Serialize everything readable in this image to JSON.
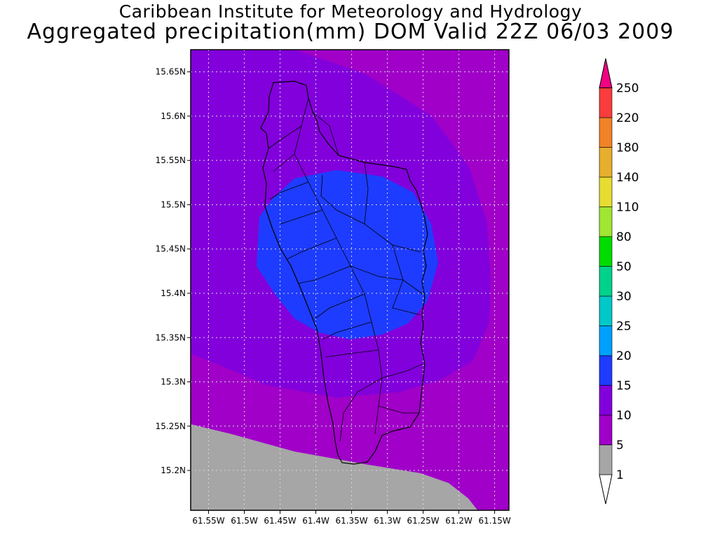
{
  "title_line1": "Caribbean Institute for Meteorology and Hydrology",
  "title_line2": "Aggregated precipitation(mm) DOM Valid 22Z 06/03 2009",
  "map": {
    "lon_range": [
      -61.575,
      -61.13
    ],
    "lat_range": [
      15.155,
      15.675
    ],
    "lon_ticks": [
      "61.55W",
      "61.5W",
      "61.45W",
      "61.4W",
      "61.35W",
      "61.3W",
      "61.25W",
      "61.2W",
      "61.15W"
    ],
    "lon_values": [
      -61.55,
      -61.5,
      -61.45,
      -61.4,
      -61.35,
      -61.3,
      -61.25,
      -61.2,
      -61.15
    ],
    "lat_ticks": [
      "15.2N",
      "15.25N",
      "15.3N",
      "15.35N",
      "15.4N",
      "15.45N",
      "15.5N",
      "15.55N",
      "15.6N",
      "15.65N"
    ],
    "lat_values": [
      15.2,
      15.25,
      15.3,
      15.35,
      15.4,
      15.45,
      15.5,
      15.55,
      15.6,
      15.65
    ],
    "grid": true,
    "fill_colors": {
      "lt5": "#a6a6a6",
      "c5_10": "#a000c8",
      "c10_15": "#8200dc",
      "c15_20": "#1e3cff",
      "border": "#000000"
    }
  },
  "colorbar": {
    "levels": [
      "1",
      "5",
      "10",
      "15",
      "20",
      "25",
      "30",
      "50",
      "80",
      "110",
      "140",
      "180",
      "220",
      "250"
    ],
    "colors": [
      "#a6a6a6",
      "#a000c8",
      "#8200dc",
      "#1e3cff",
      "#00a0ff",
      "#00c8c8",
      "#00d28c",
      "#00dc00",
      "#a0e632",
      "#e6dc32",
      "#e6af2d",
      "#f08228",
      "#fa3c3c",
      "#f00082"
    ],
    "under_color": "#ffffff"
  }
}
